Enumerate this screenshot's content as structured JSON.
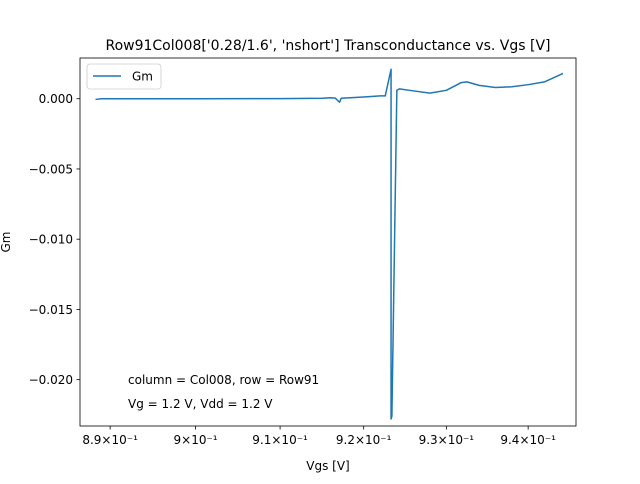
{
  "chart_data": {
    "type": "line",
    "title": "Row91Col008['0.28/1.6', 'nshort'] Transconductance vs. Vgs [V]",
    "xlabel": "Vgs [V]",
    "ylabel": "Gm",
    "x_scale": "log",
    "xlim": [
      0.8865,
      0.9459
    ],
    "ylim": [
      -0.0233,
      0.0029
    ],
    "xticks": [
      {
        "value": 0.89,
        "label": "8.9×10⁻¹"
      },
      {
        "value": 0.9,
        "label": "9×10⁻¹"
      },
      {
        "value": 0.91,
        "label": "9.1×10⁻¹"
      },
      {
        "value": 0.92,
        "label": "9.2×10⁻¹"
      },
      {
        "value": 0.93,
        "label": "9.3×10⁻¹"
      },
      {
        "value": 0.94,
        "label": "9.4×10⁻¹"
      }
    ],
    "yticks": [
      {
        "value": 0.0,
        "label": "0.000"
      },
      {
        "value": -0.005,
        "label": "−0.005"
      },
      {
        "value": -0.01,
        "label": "−0.010"
      },
      {
        "value": -0.015,
        "label": "−0.015"
      },
      {
        "value": -0.02,
        "label": "−0.020"
      }
    ],
    "legend": {
      "position": "top-left",
      "entries": [
        "Gm"
      ]
    },
    "series": [
      {
        "name": "Gm",
        "color": "#1f77b4",
        "points": [
          [
            0.8883,
            -5e-05
          ],
          [
            0.889,
            0.0
          ],
          [
            0.9,
            0.0
          ],
          [
            0.91,
            1e-05
          ],
          [
            0.915,
            3e-05
          ],
          [
            0.916,
            7e-05
          ],
          [
            0.9166,
            4e-05
          ],
          [
            0.9171,
            -0.00025
          ],
          [
            0.9173,
            3e-05
          ],
          [
            0.92,
            0.00012
          ],
          [
            0.922,
            0.0002
          ],
          [
            0.9226,
            0.0002
          ],
          [
            0.9233,
            0.0021
          ],
          [
            0.9233,
            -0.0228
          ],
          [
            0.9234,
            -0.0226
          ],
          [
            0.924,
            0.0006
          ],
          [
            0.9243,
            0.0007
          ],
          [
            0.9255,
            0.0006
          ],
          [
            0.928,
            0.0004
          ],
          [
            0.93,
            0.0006
          ],
          [
            0.931,
            0.0009
          ],
          [
            0.9318,
            0.00115
          ],
          [
            0.9325,
            0.0012
          ],
          [
            0.934,
            0.00095
          ],
          [
            0.936,
            0.0008
          ],
          [
            0.938,
            0.00085
          ],
          [
            0.94,
            0.001
          ],
          [
            0.942,
            0.0012
          ],
          [
            0.9443,
            0.0018
          ]
        ]
      }
    ],
    "annotations": [
      "column = Col008, row = Row91",
      "Vg = 1.2 V, Vdd = 1.2 V"
    ]
  }
}
